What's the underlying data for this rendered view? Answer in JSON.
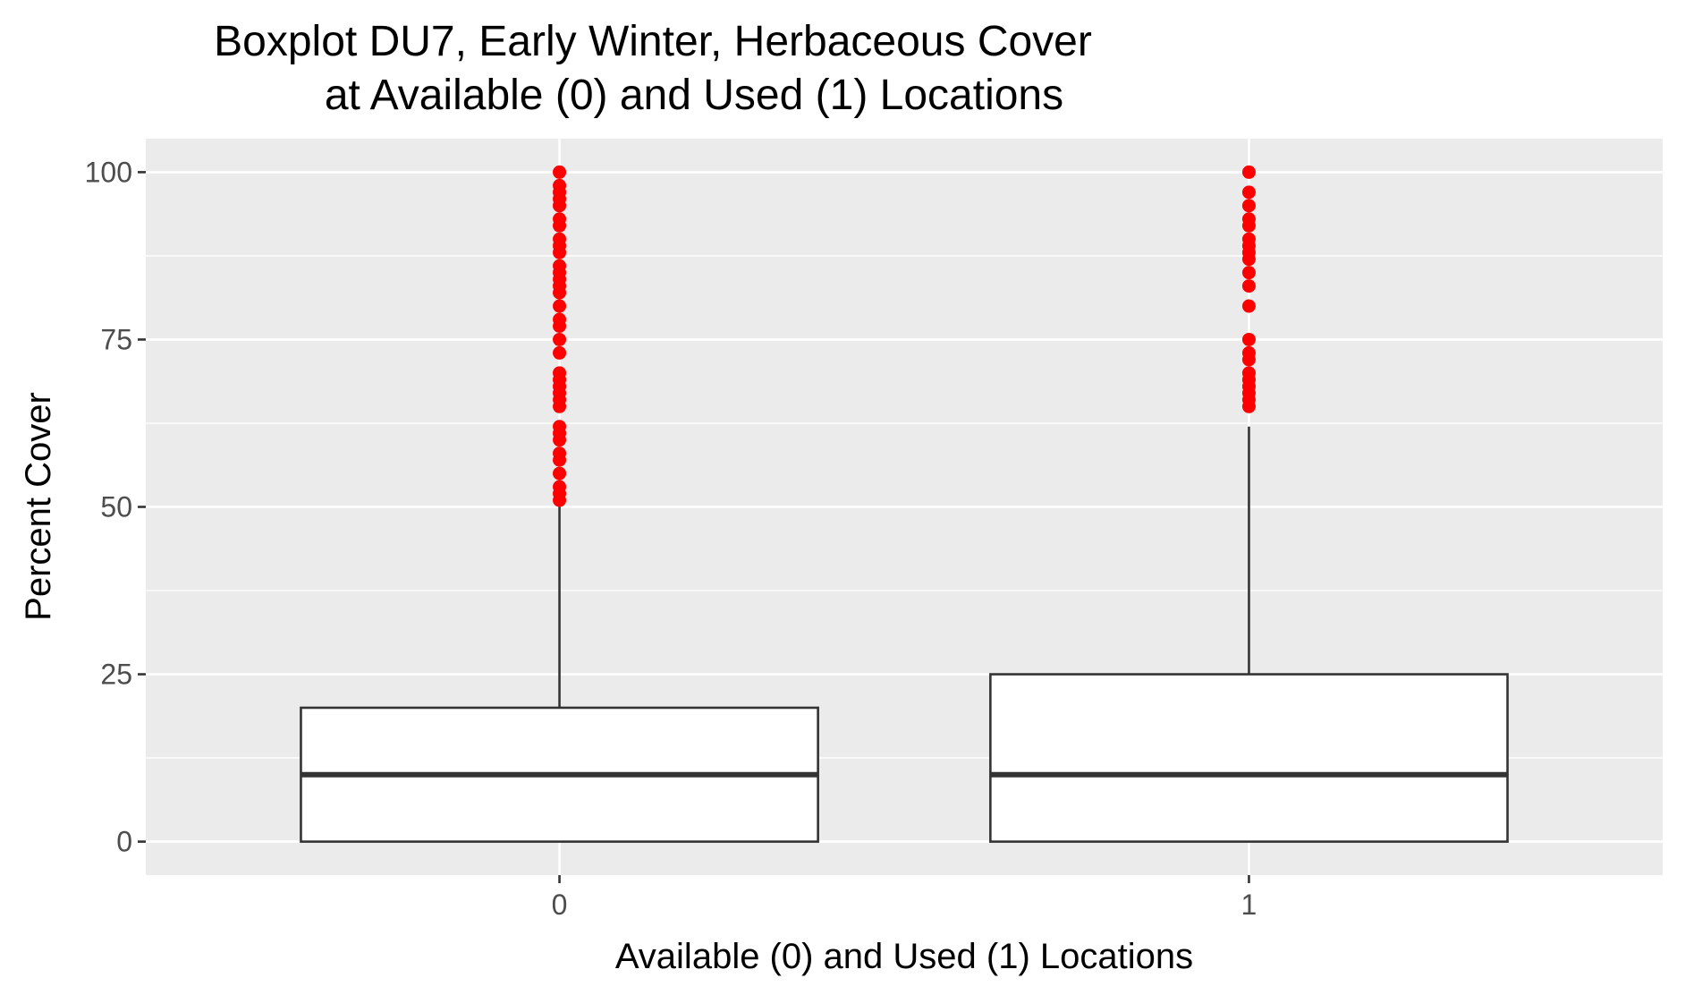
{
  "chart_data": {
    "type": "boxplot",
    "title_lines": [
      "Boxplot DU7, Early Winter, Herbaceous Cover",
      "at Available (0) and Used (1) Locations"
    ],
    "xlabel": "Available (0) and Used (1) Locations",
    "ylabel": "Percent Cover",
    "ylim": [
      -5,
      105
    ],
    "yticks": [
      0,
      25,
      50,
      75,
      100
    ],
    "ytick_labels": [
      "0",
      "25",
      "50",
      "75",
      "100"
    ],
    "grid": true,
    "outlier_color": "#ff0000",
    "categories": [
      "0",
      "1"
    ],
    "boxes": [
      {
        "category": "0",
        "lower_whisker": 0,
        "q1": 0,
        "median": 10,
        "q3": 20,
        "upper_whisker": 50,
        "outliers": [
          51,
          52,
          53,
          55,
          57,
          58,
          60,
          61,
          62,
          65,
          66,
          67,
          68,
          69,
          70,
          73,
          75,
          77,
          78,
          80,
          82,
          83,
          84,
          85,
          86,
          88,
          89,
          90,
          92,
          93,
          95,
          96,
          97,
          98,
          100
        ]
      },
      {
        "category": "1",
        "lower_whisker": 0,
        "q1": 0,
        "median": 10,
        "q3": 25,
        "upper_whisker": 62,
        "outliers": [
          65,
          66,
          67,
          68,
          69,
          70,
          72,
          73,
          75,
          80,
          83,
          85,
          87,
          88,
          89,
          90,
          92,
          93,
          95,
          97,
          100
        ]
      }
    ]
  }
}
